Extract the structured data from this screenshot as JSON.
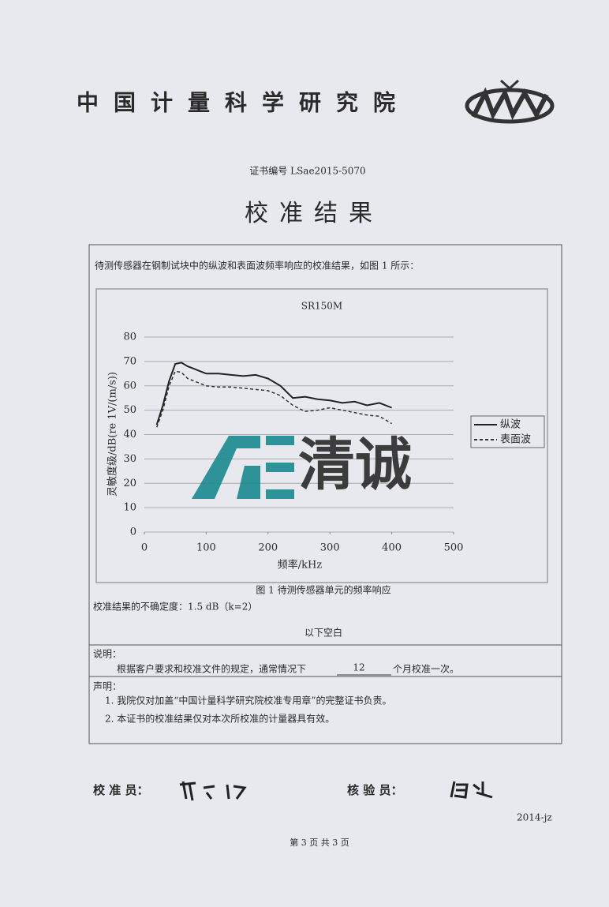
{
  "header": {
    "institute": "中国计量科学研究院"
  },
  "certificate_no": "证书编号 LSae2015-5070",
  "title": "校准结果",
  "intro": "待测传感器在钢制试块中的纵波和表面波频率响应的校准结果，如图 1 所示：",
  "chart_data": {
    "type": "line",
    "title": "SR150M",
    "y_label": "灵敏度级/dB(re 1V/(m/s))",
    "x_label": "频率/kHz",
    "x": [
      20,
      30,
      40,
      50,
      60,
      70,
      80,
      100,
      120,
      140,
      160,
      180,
      200,
      220,
      240,
      260,
      280,
      300,
      320,
      340,
      360,
      380,
      400
    ],
    "series": [
      {
        "name": "纵波",
        "color": "#222222",
        "style": "solid",
        "values": [
          44,
          52,
          62,
          69,
          69.5,
          68,
          67,
          65,
          65,
          64.5,
          64,
          64.5,
          63,
          60,
          55,
          55.5,
          54.5,
          54,
          53,
          53.5,
          52,
          53,
          51
        ]
      },
      {
        "name": "表面波",
        "color": "#333333",
        "style": "dashed",
        "values": [
          43,
          50,
          60,
          66,
          65.5,
          63,
          62,
          60,
          59.5,
          59.5,
          59,
          58.5,
          58,
          56,
          52,
          49.5,
          50,
          51,
          50,
          49,
          48,
          47.5,
          44.5
        ]
      }
    ],
    "xlim": [
      0,
      500
    ],
    "xticks": [
      0,
      100,
      200,
      300,
      400,
      500
    ],
    "ylim": [
      0,
      80
    ],
    "yticks": [
      0,
      10,
      20,
      30,
      40,
      50,
      60,
      70,
      80
    ],
    "grid": true,
    "legend": "right"
  },
  "watermark": "清诚",
  "caption": "图 1 待测传感器单元的频率响应",
  "uncertainty": "校准结果的不确定度：1.5 dB（k=2）",
  "blank_note": "以下空白",
  "notes": {
    "heading": "说明：",
    "before": "根据客户要求和校准文件的规定，通常情况下",
    "months": "12",
    "after": "个月校准一次。"
  },
  "statement": {
    "heading": "声明：",
    "items": [
      "1. 我院仅对加盖“中国计量科学研究院校准专用章”的完整证书负责。",
      "2. 本证书的校准结果仅对本次所校准的计量器具有效。"
    ]
  },
  "signatures": {
    "calibrator": "校 准 员：",
    "verifier": "核 验 员："
  },
  "form_code": "2014-jz",
  "footer": "第 3 页   共 3 页"
}
